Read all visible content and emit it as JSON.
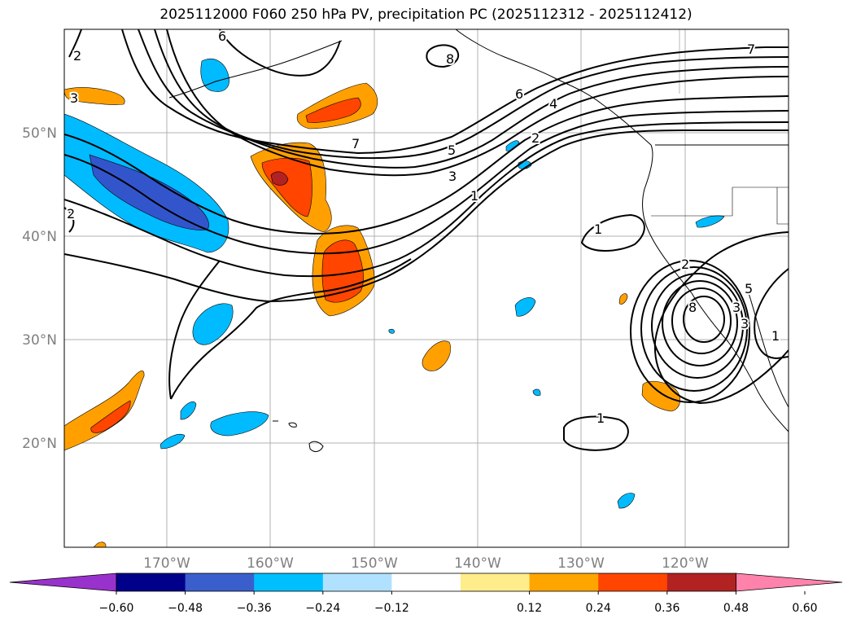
{
  "title": "2025112000 F060 250 hPa PV, precipitation PC (2025112312 - 2025112412)",
  "map": {
    "lat_ticks": [
      "50°N",
      "40°N",
      "30°N",
      "20°N"
    ],
    "lon_ticks": [
      "170°W",
      "160°W",
      "150°W",
      "140°W",
      "130°W",
      "120°W"
    ],
    "contour_labels": [
      "2",
      "3",
      "6",
      "8",
      "7",
      "5",
      "3",
      "1",
      "6",
      "4",
      "2",
      "7",
      "1",
      "2",
      "8",
      "5",
      "3",
      "1",
      "1",
      "2",
      "3"
    ],
    "colors": {
      "light_blue": "#00bbff",
      "mid_blue": "#3355cc",
      "orange": "#ffa000",
      "red_orange": "#ff4500",
      "dark_red": "#b22222",
      "land_line": "#000000",
      "grid": "#b0b0b0"
    }
  },
  "colorbar": {
    "tick_labels": [
      "−0.60",
      "−0.48",
      "−0.36",
      "−0.24",
      "−0.12",
      "0.12",
      "0.24",
      "0.36",
      "0.48",
      "0.60"
    ],
    "colors": [
      "#9932cc",
      "#00008b",
      "#3a5fcd",
      "#00bfff",
      "#b0e2ff",
      "#ffffff",
      "#ffec8b",
      "#ffa500",
      "#ff4500",
      "#b22222",
      "#ff82ab"
    ]
  }
}
